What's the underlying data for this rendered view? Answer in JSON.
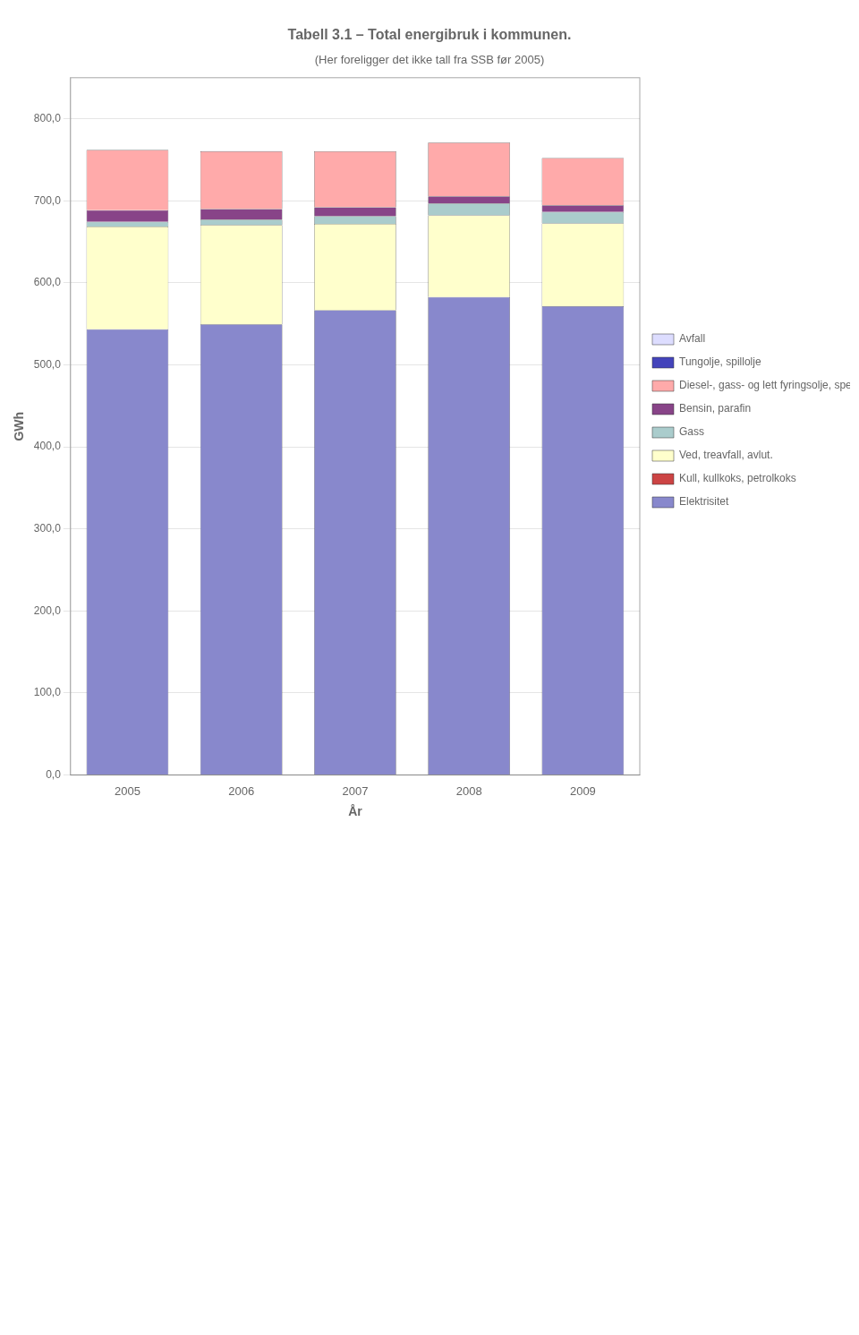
{
  "chart_data": {
    "type": "bar",
    "title": "Tabell 3.1 – Total energibruk i kommunen.",
    "subtitle": "(Her foreligger det ikke tall fra SSB før 2005)",
    "xlabel": "År",
    "ylabel": "GWh",
    "categories": [
      "2005",
      "2006",
      "2007",
      "2008",
      "2009"
    ],
    "series": [
      {
        "name": "Elektrisitet",
        "color": "#8888cc",
        "values": [
          543.3,
          549.4,
          566.6,
          582.6,
          571.6
        ]
      },
      {
        "name": "Kull, kullkoks, petrolkoks",
        "color": "#cc4444",
        "values": [
          0.0,
          0.0,
          0.0,
          0.0,
          0.0
        ]
      },
      {
        "name": "Ved, treavfall, avlut.",
        "color": "#ffffcc",
        "values": [
          125.4,
          121.2,
          105.4,
          99.7,
          100.7
        ]
      },
      {
        "name": "Gass",
        "color": "#aacccc",
        "values": [
          5.7,
          6.4,
          9.2,
          14.3,
          14.1
        ]
      },
      {
        "name": "Bensin, parafin",
        "color": "#884488",
        "values": [
          14.2,
          12.9,
          11.0,
          8.8,
          8.0
        ]
      },
      {
        "name": "Diesel-, gass- og lett fyringsolje, spesialdestillat",
        "color": "#ffaaaa",
        "values": [
          73.3,
          70.5,
          68.1,
          65.5,
          57.6
        ]
      },
      {
        "name": "Tungolje, spillolje",
        "color": "#4444bb",
        "values": [
          0.2,
          0.1,
          0.1,
          0.0,
          0.0
        ]
      },
      {
        "name": "Avfall",
        "color": "#ddddff",
        "values": [
          0.0,
          0.0,
          0.0,
          0.0,
          0.0
        ]
      }
    ],
    "stacked": true,
    "ylim": [
      0,
      850
    ],
    "yticks": [
      {
        "value": 0,
        "label": "0,0"
      },
      {
        "value": 100,
        "label": "100,0"
      },
      {
        "value": 200,
        "label": "200,0"
      },
      {
        "value": 300,
        "label": "300,0"
      },
      {
        "value": 400,
        "label": "400,0"
      },
      {
        "value": 500,
        "label": "500,0"
      },
      {
        "value": 600,
        "label": "600,0"
      },
      {
        "value": 700,
        "label": "700,0"
      },
      {
        "value": 800,
        "label": "800,0"
      }
    ],
    "grid": true,
    "legend": "right"
  }
}
